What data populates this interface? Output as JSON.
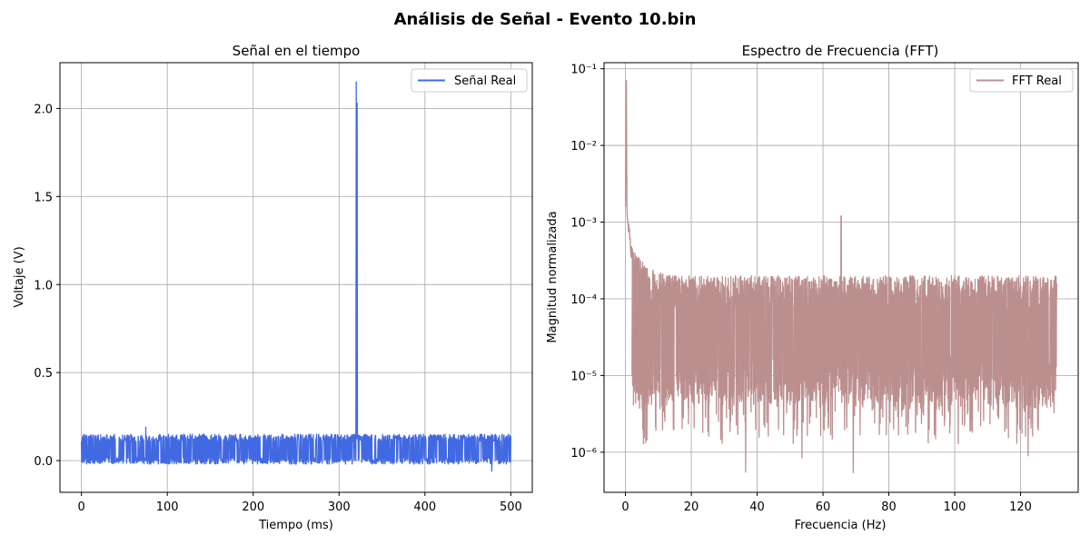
{
  "figure": {
    "title": "Análisis de Señal - Evento 10.bin"
  },
  "chart_data": [
    {
      "type": "line",
      "title": "Señal en el tiempo",
      "xlabel": "Tiempo (ms)",
      "ylabel": "Voltaje (V)",
      "xlim": [
        -25,
        525
      ],
      "ylim": [
        -0.18,
        2.26
      ],
      "xticks": [
        0,
        100,
        200,
        300,
        400,
        500
      ],
      "xtick_labels": [
        "0",
        "100",
        "200",
        "300",
        "400",
        "500"
      ],
      "yticks": [
        0.0,
        0.5,
        1.0,
        1.5,
        2.0
      ],
      "ytick_labels": [
        "0.0",
        "0.5",
        "1.0",
        "1.5",
        "2.0"
      ],
      "grid": true,
      "legend_position": "top-right",
      "series": [
        {
          "name": "Señal Real",
          "color": "#4169e1",
          "noise_band": {
            "x_start": 0,
            "x_end": 500,
            "low": -0.02,
            "high": 0.15,
            "mean": 0.06
          },
          "spikes": [
            {
              "x": 320,
              "y": 2.15
            },
            {
              "x": 321,
              "y": 2.03
            },
            {
              "x": 75,
              "y": 0.19
            },
            {
              "x": 478,
              "y": -0.06
            }
          ]
        }
      ]
    },
    {
      "type": "line",
      "title": "Espectro de Frecuencia (FFT)",
      "xlabel": "Frecuencia (Hz)",
      "ylabel": "Magnitud normalizada",
      "xlim": [
        -6.5,
        137.5
      ],
      "ylim": [
        3e-07,
        0.12
      ],
      "yscale": "log",
      "xticks": [
        0,
        20,
        40,
        60,
        80,
        100,
        120
      ],
      "xtick_labels": [
        "0",
        "20",
        "40",
        "60",
        "80",
        "100",
        "120"
      ],
      "yticks": [
        1e-06,
        1e-05,
        0.0001,
        0.001,
        0.01,
        0.1
      ],
      "ytick_labels": [
        "10⁻⁶",
        "10⁻⁵",
        "10⁻⁴",
        "10⁻³",
        "10⁻²",
        "10⁻¹"
      ],
      "grid": true,
      "legend_position": "top-right",
      "series": [
        {
          "name": "FFT Real",
          "color": "#bc8f8f",
          "peak": {
            "x": 0.3,
            "y": 0.07
          },
          "low_freq_level": {
            "x": 0.3,
            "y": 0.0015
          },
          "spike": {
            "x": 65.5,
            "y": 0.0012
          },
          "noise_band": {
            "x_start": 2,
            "x_end": 131,
            "top": 0.0002,
            "bottom": 1e-05,
            "floor_min": 5.5e-07
          }
        }
      ]
    }
  ]
}
